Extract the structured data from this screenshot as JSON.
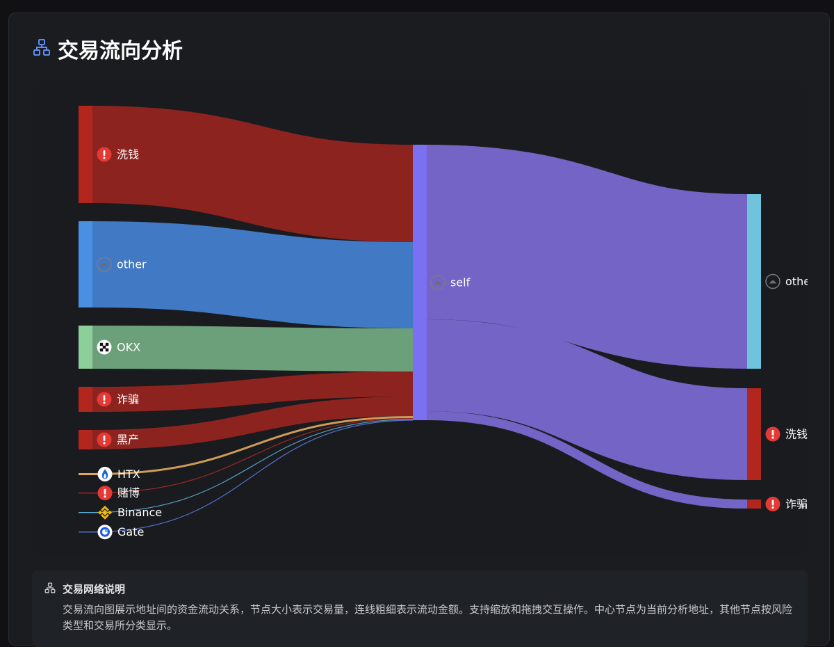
{
  "page": {
    "title": "交易流向分析",
    "title_icon": "network-icon"
  },
  "info": {
    "title": "交易网络说明",
    "icon": "network-icon",
    "text": "交易流向图展示地址间的资金流动关系，节点大小表示交易量，连线粗细表示流动金额。支持缩放和拖拽交互操作。中心节点为当前分析地址，其他节点按风险类型和交易所分类显示。"
  },
  "chart_data": {
    "type": "sankey",
    "units": "relative volume (no scale printed)",
    "nodes": [
      {
        "id": "src_laundering",
        "label": "洗钱",
        "column": 0,
        "icon": "alert-icon",
        "color": "#b3261e",
        "link_color": "#932420"
      },
      {
        "id": "src_other",
        "label": "other",
        "column": 0,
        "icon": "wallet-icon",
        "color": "#4a90e2",
        "link_color": "#437ecd"
      },
      {
        "id": "src_okx",
        "label": "OKX",
        "column": 0,
        "icon": "okx-logo-icon",
        "color": "#8dcf9b",
        "link_color": "#71a87f"
      },
      {
        "id": "src_fraud",
        "label": "诈骗",
        "column": 0,
        "icon": "alert-icon",
        "color": "#b3261e",
        "link_color": "#932420"
      },
      {
        "id": "src_blackmarket",
        "label": "黑产",
        "column": 0,
        "icon": "alert-icon",
        "color": "#b3261e",
        "link_color": "#932420"
      },
      {
        "id": "src_htx",
        "label": "HTX",
        "column": 0,
        "icon": "htx-logo-icon",
        "color": "#e0a95a",
        "link_color": "#d9a35a"
      },
      {
        "id": "src_gambling",
        "label": "赌博",
        "column": 0,
        "icon": "alert-icon",
        "color": "#b3261e",
        "link_color": "#a52a26"
      },
      {
        "id": "src_binance",
        "label": "Binance",
        "column": 0,
        "icon": "binance-logo-icon",
        "color": "#5aaed8",
        "link_color": "#57a6c9"
      },
      {
        "id": "src_gate",
        "label": "Gate",
        "column": 0,
        "icon": "gate-logo-icon",
        "color": "#5a78e0",
        "link_color": "#5a74d8"
      },
      {
        "id": "self",
        "label": "self",
        "column": 1,
        "icon": "wallet-icon",
        "color": "#7b6ff2",
        "link_color": "#7868cf"
      },
      {
        "id": "dst_other",
        "label": "other",
        "column": 2,
        "icon": "wallet-icon",
        "color": "#6ec4dc",
        "link_color": "#7868cf"
      },
      {
        "id": "dst_laundering",
        "label": "洗钱",
        "column": 2,
        "icon": "alert-icon",
        "color": "#b3261e",
        "link_color": "#7868cf"
      },
      {
        "id": "dst_fraud",
        "label": "诈骗",
        "column": 2,
        "icon": "alert-icon",
        "color": "#b3261e",
        "link_color": "#7868cf"
      }
    ],
    "links": [
      {
        "source": "src_laundering",
        "target": "self",
        "value": 140
      },
      {
        "source": "src_other",
        "target": "self",
        "value": 124
      },
      {
        "source": "src_okx",
        "target": "self",
        "value": 62
      },
      {
        "source": "src_fraud",
        "target": "self",
        "value": 36
      },
      {
        "source": "src_blackmarket",
        "target": "self",
        "value": 28
      },
      {
        "source": "src_htx",
        "target": "self",
        "value": 3
      },
      {
        "source": "src_gambling",
        "target": "self",
        "value": 1
      },
      {
        "source": "src_binance",
        "target": "self",
        "value": 1
      },
      {
        "source": "src_gate",
        "target": "self",
        "value": 1
      },
      {
        "source": "self",
        "target": "dst_other",
        "value": 251
      },
      {
        "source": "self",
        "target": "dst_laundering",
        "value": 132
      },
      {
        "source": "self",
        "target": "dst_fraud",
        "value": 13
      }
    ]
  }
}
